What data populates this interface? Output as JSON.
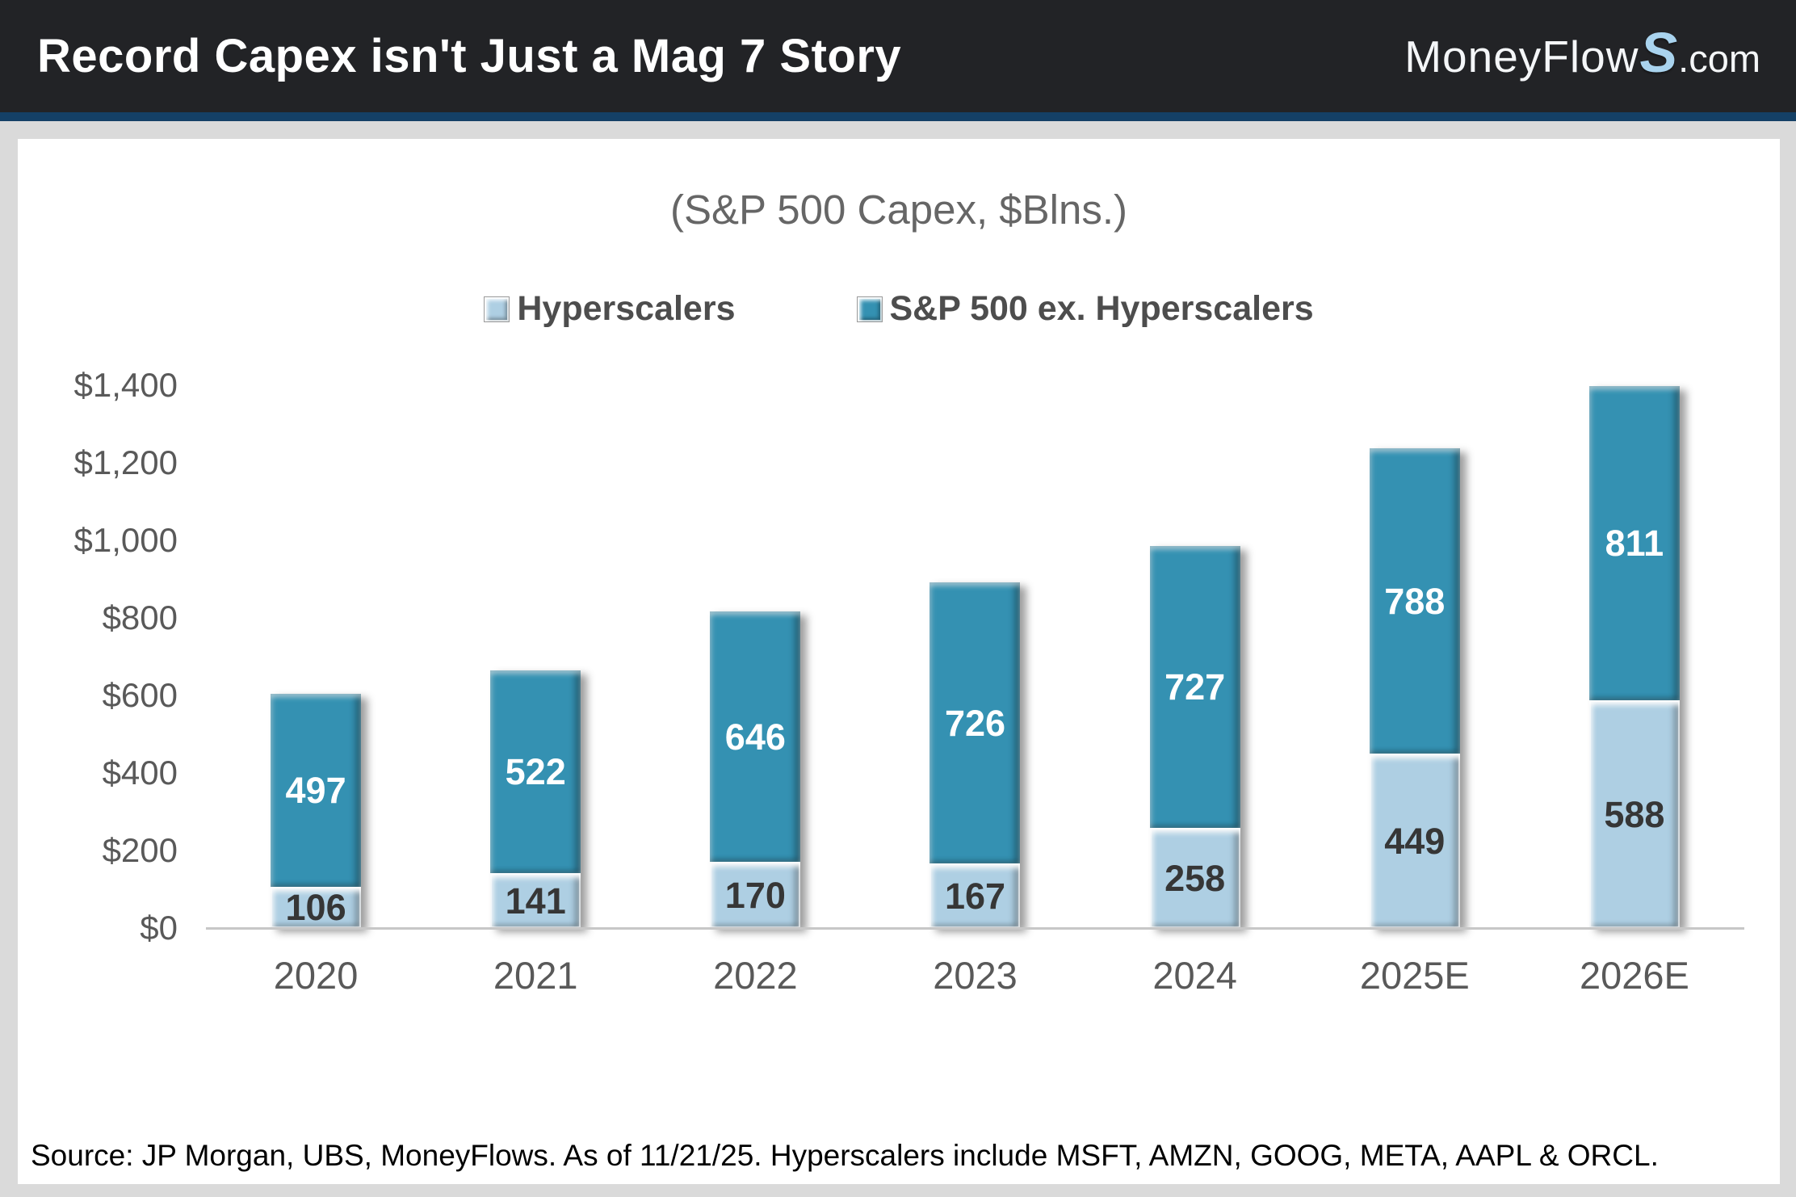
{
  "header": {
    "title": "Record Capex isn't Just a Mag 7 Story",
    "logo": {
      "part1": "MoneyFlow",
      "part2": "S",
      "part3": ".com"
    }
  },
  "chart_data": {
    "type": "bar",
    "stacked": true,
    "title": "(S&P 500 Capex, $Blns.)",
    "categories": [
      "2020",
      "2021",
      "2022",
      "2023",
      "2024",
      "2025E",
      "2026E"
    ],
    "series": [
      {
        "name": "Hyperscalers",
        "color": "#aecfe3",
        "label_color": "#363636",
        "values": [
          106,
          141,
          170,
          167,
          258,
          449,
          588
        ]
      },
      {
        "name": "S&P 500 ex. Hyperscalers",
        "color": "#3491b2",
        "label_color": "#ffffff",
        "values": [
          497,
          522,
          646,
          726,
          727,
          788,
          811
        ]
      }
    ],
    "y_ticks": [
      {
        "label": "$0",
        "value": 0
      },
      {
        "label": "$200",
        "value": 200
      },
      {
        "label": "$400",
        "value": 400
      },
      {
        "label": "$600",
        "value": 600
      },
      {
        "label": "$800",
        "value": 800
      },
      {
        "label": "$1,000",
        "value": 1000
      },
      {
        "label": "$1,200",
        "value": 1200
      },
      {
        "label": "$1,400",
        "value": 1400
      }
    ],
    "ylim": [
      0,
      1400
    ],
    "grid": false,
    "legend_position": "top"
  },
  "source": "Source: JP Morgan, UBS, MoneyFlows. As of 11/21/25. Hyperscalers include MSFT, AMZN, GOOG, META, AAPL & ORCL.",
  "colors": {
    "header_bg": "#222326",
    "divider": "#144066",
    "page_bg": "#dadada",
    "panel_bg": "#ffffff",
    "axis_text": "#595959",
    "title_text": "#666666",
    "legend_text": "#4d4d4d"
  }
}
